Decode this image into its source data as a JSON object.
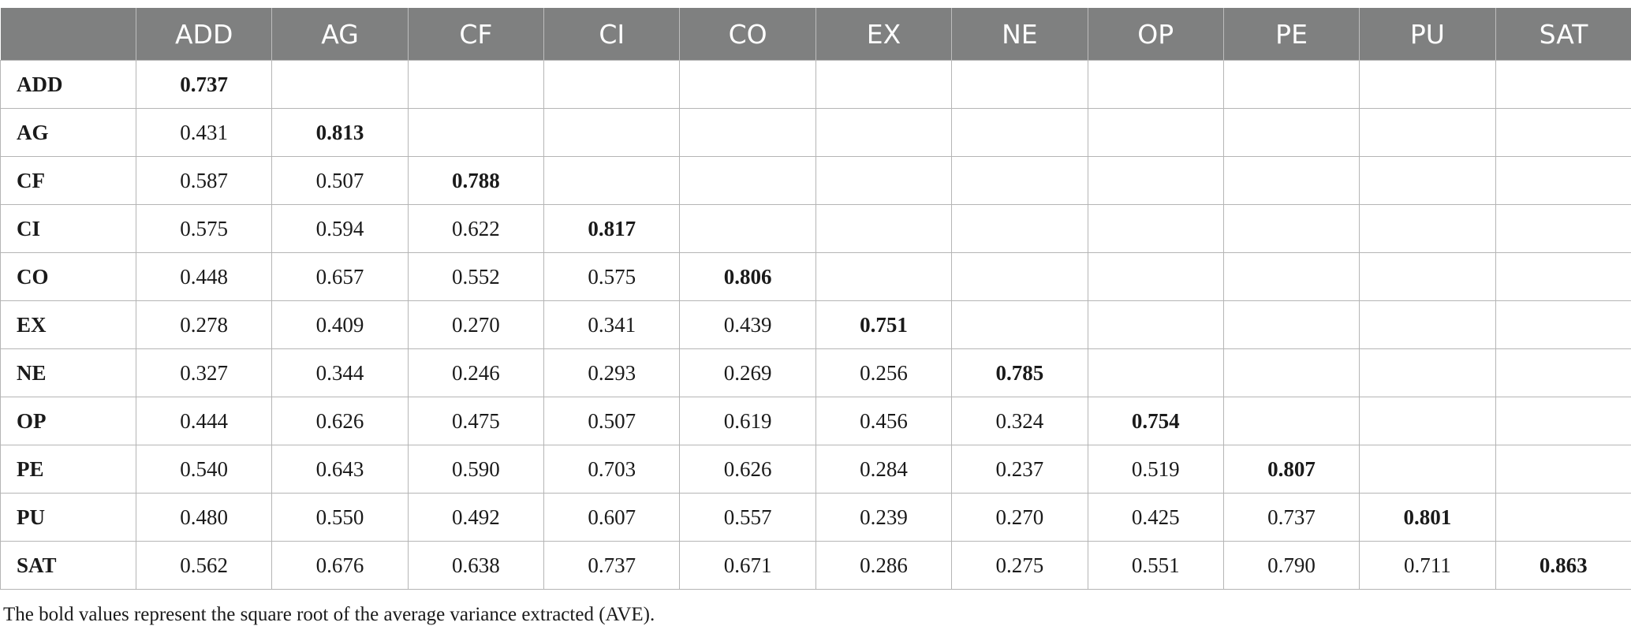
{
  "table": {
    "corner": "",
    "headers": [
      "ADD",
      "AG",
      "CF",
      "CI",
      "CO",
      "EX",
      "NE",
      "OP",
      "PE",
      "PU",
      "SAT"
    ],
    "rows": [
      {
        "label": "ADD",
        "values": [
          "0.737",
          "",
          "",
          "",
          "",
          "",
          "",
          "",
          "",
          "",
          ""
        ]
      },
      {
        "label": "AG",
        "values": [
          "0.431",
          "0.813",
          "",
          "",
          "",
          "",
          "",
          "",
          "",
          "",
          ""
        ]
      },
      {
        "label": "CF",
        "values": [
          "0.587",
          "0.507",
          "0.788",
          "",
          "",
          "",
          "",
          "",
          "",
          "",
          ""
        ]
      },
      {
        "label": "CI",
        "values": [
          "0.575",
          "0.594",
          "0.622",
          "0.817",
          "",
          "",
          "",
          "",
          "",
          "",
          ""
        ]
      },
      {
        "label": "CO",
        "values": [
          "0.448",
          "0.657",
          "0.552",
          "0.575",
          "0.806",
          "",
          "",
          "",
          "",
          "",
          ""
        ]
      },
      {
        "label": "EX",
        "values": [
          "0.278",
          "0.409",
          "0.270",
          "0.341",
          "0.439",
          "0.751",
          "",
          "",
          "",
          "",
          ""
        ]
      },
      {
        "label": "NE",
        "values": [
          "0.327",
          "0.344",
          "0.246",
          "0.293",
          "0.269",
          "0.256",
          "0.785",
          "",
          "",
          "",
          ""
        ]
      },
      {
        "label": "OP",
        "values": [
          "0.444",
          "0.626",
          "0.475",
          "0.507",
          "0.619",
          "0.456",
          "0.324",
          "0.754",
          "",
          "",
          ""
        ]
      },
      {
        "label": "PE",
        "values": [
          "0.540",
          "0.643",
          "0.590",
          "0.703",
          "0.626",
          "0.284",
          "0.237",
          "0.519",
          "0.807",
          "",
          ""
        ]
      },
      {
        "label": "PU",
        "values": [
          "0.480",
          "0.550",
          "0.492",
          "0.607",
          "0.557",
          "0.239",
          "0.270",
          "0.425",
          "0.737",
          "0.801",
          ""
        ]
      },
      {
        "label": "SAT",
        "values": [
          "0.562",
          "0.676",
          "0.638",
          "0.737",
          "0.671",
          "0.286",
          "0.275",
          "0.551",
          "0.790",
          "0.711",
          "0.863"
        ]
      }
    ]
  },
  "footnote": "The bold values represent the square root of the average variance extracted (AVE).",
  "colors": {
    "header_bg": "#7f8080",
    "header_text": "#ffffff",
    "border": "#b5b5b5"
  }
}
